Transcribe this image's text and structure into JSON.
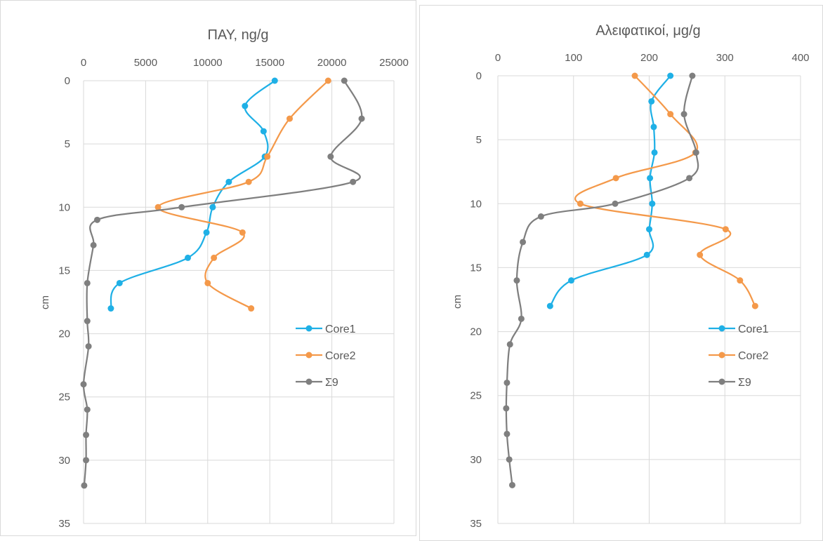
{
  "chart_data": [
    {
      "type": "line",
      "title": "ΠΑΥ, ng/g",
      "xlabel": "",
      "ylabel": "cm",
      "xlim": [
        0,
        25000
      ],
      "ylim": [
        0,
        35
      ],
      "y_reversed": true,
      "x_axis_position": "top",
      "x_ticks": [
        "0",
        "5000",
        "10000",
        "15000",
        "20000",
        "25000"
      ],
      "y_ticks": [
        "0",
        "5",
        "10",
        "15",
        "20",
        "25",
        "30",
        "35"
      ],
      "grid": true,
      "legend_position": "right",
      "series": [
        {
          "name": "Core1",
          "color": "#1fb0e6",
          "points": [
            [
              15400,
              0
            ],
            [
              13000,
              2
            ],
            [
              14500,
              4
            ],
            [
              14600,
              6
            ],
            [
              11700,
              8
            ],
            [
              10400,
              10
            ],
            [
              9900,
              12
            ],
            [
              8400,
              14
            ],
            [
              2900,
              16
            ],
            [
              2200,
              18
            ]
          ]
        },
        {
          "name": "Core2",
          "color": "#f4994a",
          "points": [
            [
              19700,
              0
            ],
            [
              16600,
              3
            ],
            [
              14800,
              6
            ],
            [
              13300,
              8
            ],
            [
              6000,
              10
            ],
            [
              12800,
              12
            ],
            [
              10500,
              14
            ],
            [
              10000,
              16
            ],
            [
              13500,
              18
            ]
          ]
        },
        {
          "name": "Σ9",
          "color": "#7f7f7f",
          "points": [
            [
              21000,
              0
            ],
            [
              22400,
              3
            ],
            [
              19900,
              6
            ],
            [
              21700,
              8
            ],
            [
              7900,
              10
            ],
            [
              1100,
              11
            ],
            [
              800,
              13
            ],
            [
              300,
              16
            ],
            [
              300,
              19
            ],
            [
              400,
              21
            ],
            [
              0,
              24
            ],
            [
              300,
              26
            ],
            [
              200,
              28
            ],
            [
              200,
              30
            ],
            [
              50,
              32
            ]
          ]
        }
      ]
    },
    {
      "type": "line",
      "title": "Αλειφατικοί, μg/g",
      "xlabel": "",
      "ylabel": "cm",
      "xlim": [
        0,
        400
      ],
      "ylim": [
        0,
        35
      ],
      "y_reversed": true,
      "x_axis_position": "top",
      "x_ticks": [
        "0",
        "100",
        "200",
        "300",
        "400"
      ],
      "y_ticks": [
        "0",
        "5",
        "10",
        "15",
        "20",
        "25",
        "30",
        "35"
      ],
      "grid": true,
      "legend_position": "right",
      "series": [
        {
          "name": "Core1",
          "color": "#1fb0e6",
          "points": [
            [
              228,
              0
            ],
            [
              203,
              2
            ],
            [
              206,
              4
            ],
            [
              207,
              6
            ],
            [
              201,
              8
            ],
            [
              204,
              10
            ],
            [
              200,
              12
            ],
            [
              197,
              14
            ],
            [
              97,
              16
            ],
            [
              69,
              18
            ]
          ]
        },
        {
          "name": "Core2",
          "color": "#f4994a",
          "points": [
            [
              181,
              0
            ],
            [
              228,
              3
            ],
            [
              261,
              6
            ],
            [
              156,
              8
            ],
            [
              109,
              10
            ],
            [
              301,
              12
            ],
            [
              267,
              14
            ],
            [
              320,
              16
            ],
            [
              340,
              18
            ]
          ]
        },
        {
          "name": "Σ9",
          "color": "#7f7f7f",
          "points": [
            [
              257,
              0
            ],
            [
              246,
              3
            ],
            [
              262,
              6
            ],
            [
              253,
              8
            ],
            [
              155,
              10
            ],
            [
              57,
              11
            ],
            [
              33,
              13
            ],
            [
              25,
              16
            ],
            [
              31,
              19
            ],
            [
              16,
              21
            ],
            [
              12,
              24
            ],
            [
              11,
              26
            ],
            [
              12,
              28
            ],
            [
              15,
              30
            ],
            [
              19,
              32
            ]
          ]
        }
      ]
    }
  ]
}
